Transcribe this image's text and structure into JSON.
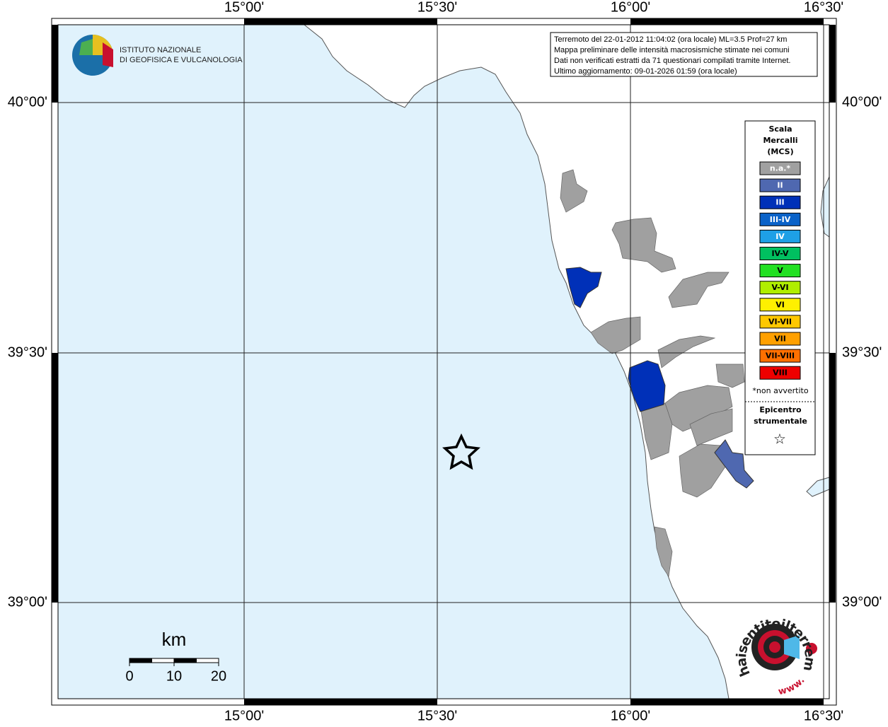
{
  "header": {
    "institute": [
      "ISTITUTO NAZIONALE",
      "DI GEOFISICA E VULCANOLOGIA"
    ]
  },
  "info": [
    "Terremoto del 22-01-2012 11:04:02 (ora locale) ML=3.5 Prof=27 km",
    "Mappa preliminare delle intensità macrosismiche stimate nei comuni",
    "Dati non verificati estratti da 71 questionari compilati tramite Internet.",
    "Ultimo aggiornamento: 09-01-2026 01:59 (ora locale)"
  ],
  "map": {
    "lon_labels": [
      "15°00'",
      "15°30'",
      "16°00'",
      "16°30'"
    ],
    "lat_labels": [
      "40°00'",
      "39°30'",
      "39°00'"
    ]
  },
  "legend": {
    "title": [
      "Scala",
      "Mercalli",
      "(MCS)"
    ],
    "items": [
      {
        "label": "n.a.*",
        "color": "#a0a0a0"
      },
      {
        "label": "II",
        "color": "#4f68b0"
      },
      {
        "label": "III",
        "color": "#0030b8"
      },
      {
        "label": "III-IV",
        "color": "#0a62c8"
      },
      {
        "label": "IV",
        "color": "#1ea0e6"
      },
      {
        "label": "IV-V",
        "color": "#00c060"
      },
      {
        "label": "V",
        "color": "#22e022"
      },
      {
        "label": "V-VI",
        "color": "#b0ee00"
      },
      {
        "label": "VI",
        "color": "#fff000"
      },
      {
        "label": "VI-VII",
        "color": "#ffc800"
      },
      {
        "label": "VII",
        "color": "#ffa000"
      },
      {
        "label": "VII-VIII",
        "color": "#ff7000"
      },
      {
        "label": "VIII",
        "color": "#ee0000"
      }
    ],
    "note": "*non avvertito",
    "epicenter": [
      "Epicentro",
      "strumentale"
    ],
    "star": "☆"
  },
  "scale_bar": {
    "unit": "km",
    "labels": [
      0,
      10,
      20
    ]
  },
  "badge": {
    "text": "haisentitoilterremoto.it",
    "www": "www."
  }
}
